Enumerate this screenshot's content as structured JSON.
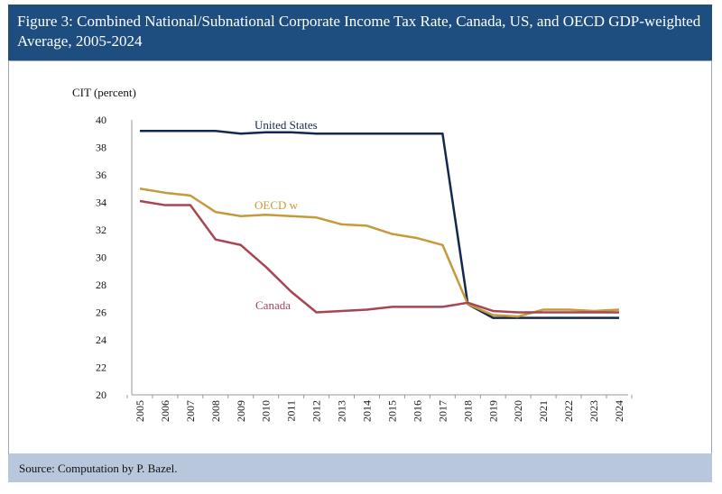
{
  "header": {
    "title": "Figure 3: Combined National/Subnational Corporate Income Tax Rate, Canada, US, and OECD GDP-weighted Average, 2005-2024"
  },
  "footer": {
    "source": "Source: Computation by P. Bazel."
  },
  "chart_data": {
    "type": "line",
    "title": "Figure 3: Combined National/Subnational Corporate Income Tax Rate, Canada, US, and OECD GDP-weighted Average, 2005-2024",
    "ylabel": "CIT (percent)",
    "xlabel": "",
    "ylim": [
      20,
      40
    ],
    "yticks": [
      20,
      22,
      24,
      26,
      28,
      30,
      32,
      34,
      36,
      38,
      40
    ],
    "categories": [
      "2005",
      "2006",
      "2007",
      "2008",
      "2009",
      "2010",
      "2011",
      "2012",
      "2013",
      "2014",
      "2015",
      "2016",
      "2017",
      "2018",
      "2019",
      "2020",
      "2021",
      "2022",
      "2023",
      "2024"
    ],
    "grid": false,
    "series": [
      {
        "name": "United States",
        "color": "#14284f",
        "values": [
          39.2,
          39.2,
          39.2,
          39.2,
          39.0,
          39.1,
          39.1,
          39.0,
          39.0,
          39.0,
          39.0,
          39.0,
          39.0,
          26.6,
          25.6,
          25.6,
          25.6,
          25.6,
          25.6,
          25.6
        ]
      },
      {
        "name": "OECD  w",
        "color": "#c49a3a",
        "values": [
          35.0,
          34.7,
          34.5,
          33.3,
          33.0,
          33.1,
          33.0,
          32.9,
          32.4,
          32.3,
          31.7,
          31.4,
          30.9,
          26.6,
          25.8,
          25.7,
          26.2,
          26.2,
          26.1,
          26.2
        ]
      },
      {
        "name": "Canada",
        "color": "#a84552",
        "values": [
          34.1,
          33.8,
          33.8,
          31.3,
          30.9,
          29.3,
          27.5,
          26.0,
          26.1,
          26.2,
          26.4,
          26.4,
          26.4,
          26.7,
          26.1,
          26.0,
          26.0,
          26.0,
          26.0,
          26.0
        ]
      }
    ]
  }
}
